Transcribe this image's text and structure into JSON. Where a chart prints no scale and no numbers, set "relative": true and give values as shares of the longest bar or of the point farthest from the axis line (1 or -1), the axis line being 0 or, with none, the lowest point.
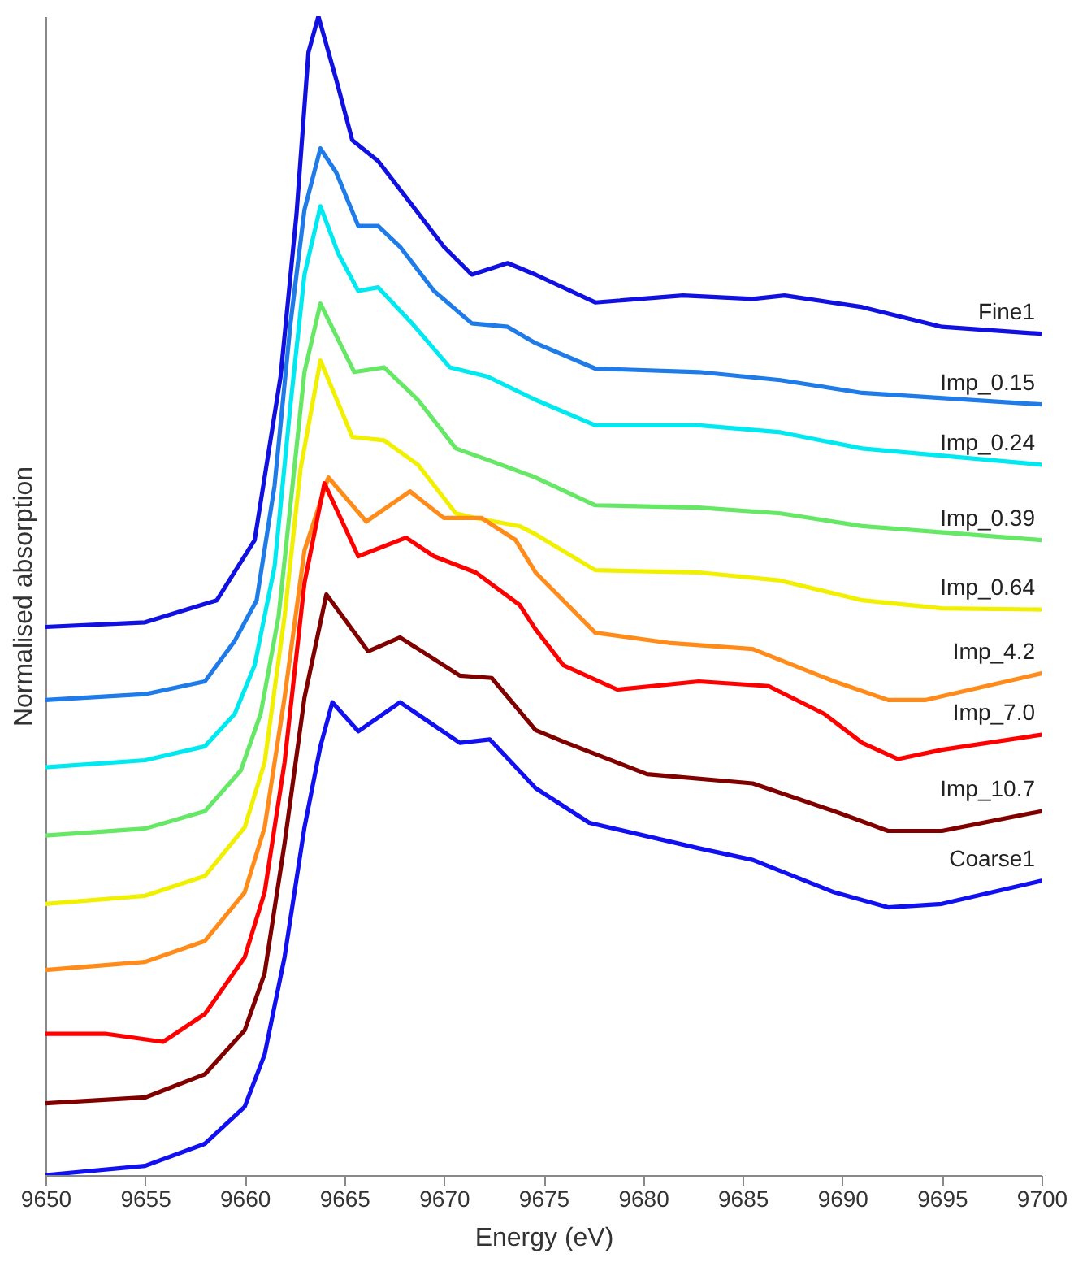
{
  "chart_data": {
    "type": "line",
    "xlabel": "Energy (eV)",
    "ylabel": "Normalised absorption",
    "relative": true,
    "xlim": [
      9650,
      9700
    ],
    "xticks": [
      9650,
      9655,
      9660,
      9665,
      9670,
      9675,
      9680,
      9685,
      9690,
      9695,
      9700
    ],
    "grid": false,
    "legend": false,
    "marker": "none",
    "line_style": "solid",
    "series": [
      {
        "name": "Fine1",
        "color": "#1010e0",
        "x": [
          9650,
          9655,
          9658.6,
          9660.5,
          9661.8,
          9662.6,
          9663.2,
          9663.7,
          9664.6,
          9665.4,
          9666.7,
          9668.4,
          9670,
          9671.4,
          9673.2,
          9674.6,
          9677.6,
          9682,
          9685.5,
          9687.1,
          9691,
          9695,
          9700
        ],
        "values": [
          0.473,
          0.477,
          0.496,
          0.548,
          0.689,
          0.829,
          0.969,
          1.0,
          0.945,
          0.893,
          0.875,
          0.837,
          0.801,
          0.777,
          0.787,
          0.777,
          0.753,
          0.759,
          0.756,
          0.759,
          0.749,
          0.732,
          0.726
        ]
      },
      {
        "name": "Imp_0.15",
        "color": "#1e7be8",
        "x": [
          9650,
          9655,
          9658,
          9659.5,
          9660.6,
          9661.5,
          9662.3,
          9663,
          9663.8,
          9664.6,
          9665.7,
          9666.7,
          9667.8,
          9669.5,
          9671.4,
          9673.2,
          9674.6,
          9677.6,
          9682.8,
          9686.9,
          9691,
          9700
        ],
        "values": [
          0.41,
          0.415,
          0.426,
          0.461,
          0.496,
          0.595,
          0.735,
          0.833,
          0.886,
          0.865,
          0.819,
          0.819,
          0.801,
          0.763,
          0.735,
          0.732,
          0.718,
          0.696,
          0.693,
          0.686,
          0.675,
          0.665
        ]
      },
      {
        "name": "Imp_0.24",
        "color": "#00e8f0",
        "x": [
          9650,
          9655,
          9658,
          9659.5,
          9660.5,
          9661.5,
          9662.3,
          9663,
          9663.8,
          9664.7,
          9665.7,
          9666.7,
          9668.4,
          9670.3,
          9672.2,
          9674.6,
          9677.6,
          9682.8,
          9686.9,
          9691,
          9700
        ],
        "values": [
          0.352,
          0.358,
          0.37,
          0.398,
          0.44,
          0.525,
          0.665,
          0.777,
          0.836,
          0.795,
          0.763,
          0.766,
          0.735,
          0.697,
          0.689,
          0.669,
          0.647,
          0.647,
          0.641,
          0.627,
          0.613
        ]
      },
      {
        "name": "Imp_0.39",
        "color": "#66e866",
        "x": [
          9650,
          9655,
          9658,
          9659.8,
          9660.8,
          9661.7,
          9662.4,
          9663,
          9663.8,
          9665.5,
          9667,
          9668.7,
          9670.6,
          9672.4,
          9674.6,
          9677.6,
          9682.8,
          9686.9,
          9691,
          9700
        ],
        "values": [
          0.293,
          0.299,
          0.314,
          0.349,
          0.398,
          0.482,
          0.595,
          0.693,
          0.752,
          0.693,
          0.697,
          0.669,
          0.627,
          0.616,
          0.602,
          0.578,
          0.576,
          0.571,
          0.56,
          0.548
        ]
      },
      {
        "name": "Imp_0.64",
        "color": "#f0f000",
        "x": [
          9650,
          9655,
          9658,
          9660,
          9661,
          9662,
          9662.8,
          9663.8,
          9665.4,
          9667,
          9668.7,
          9670.6,
          9671.6,
          9673.8,
          9674.6,
          9677.6,
          9682.8,
          9686.9,
          9691,
          9695,
          9700
        ],
        "values": [
          0.234,
          0.241,
          0.258,
          0.3,
          0.356,
          0.482,
          0.609,
          0.703,
          0.637,
          0.634,
          0.613,
          0.571,
          0.567,
          0.56,
          0.553,
          0.522,
          0.52,
          0.513,
          0.496,
          0.489,
          0.488
        ]
      },
      {
        "name": "Imp_4.2",
        "color": "#ff8c1a",
        "x": [
          9650,
          9655,
          9658,
          9660,
          9661,
          9662,
          9663,
          9664.2,
          9666.1,
          9668.3,
          9670,
          9671.9,
          9673.6,
          9674.6,
          9677.6,
          9681.4,
          9685.5,
          9689.6,
          9692.3,
          9694.2,
          9700
        ],
        "values": [
          0.177,
          0.184,
          0.202,
          0.244,
          0.3,
          0.412,
          0.539,
          0.602,
          0.564,
          0.59,
          0.567,
          0.567,
          0.548,
          0.52,
          0.468,
          0.459,
          0.454,
          0.426,
          0.41,
          0.41,
          0.433
        ]
      },
      {
        "name": "Imp_7.0",
        "color": "#ff0000",
        "x": [
          9650,
          9653,
          9655.9,
          9658,
          9660,
          9661,
          9662,
          9663,
          9664,
          9665.7,
          9668.1,
          9669.5,
          9671.6,
          9673.8,
          9674.6,
          9676,
          9678.7,
          9682.8,
          9686.3,
          9689.1,
          9691,
          9692.8,
          9695,
          9700
        ],
        "values": [
          0.122,
          0.122,
          0.115,
          0.139,
          0.188,
          0.244,
          0.356,
          0.511,
          0.597,
          0.534,
          0.55,
          0.534,
          0.52,
          0.492,
          0.471,
          0.44,
          0.419,
          0.426,
          0.422,
          0.398,
          0.373,
          0.359,
          0.367,
          0.38
        ]
      },
      {
        "name": "Imp_10.7",
        "color": "#800000",
        "x": [
          9650,
          9655,
          9658,
          9660,
          9661,
          9662,
          9663,
          9664.1,
          9666.2,
          9667.8,
          9670.8,
          9672.4,
          9674.6,
          9676,
          9680.2,
          9685.5,
          9689.6,
          9692.3,
          9695,
          9700
        ],
        "values": [
          0.062,
          0.067,
          0.087,
          0.125,
          0.174,
          0.286,
          0.412,
          0.501,
          0.452,
          0.464,
          0.431,
          0.429,
          0.384,
          0.374,
          0.346,
          0.338,
          0.314,
          0.297,
          0.297,
          0.314
        ]
      },
      {
        "name": "Coarse1",
        "color": "#1010f0",
        "x": [
          9650,
          9655,
          9658,
          9660,
          9661,
          9662,
          9663,
          9663.8,
          9664.4,
          9665.7,
          9667.8,
          9670.8,
          9672.3,
          9674.6,
          9677.3,
          9682.8,
          9685.5,
          9689.6,
          9692.3,
          9695,
          9700
        ],
        "values": [
          0.0,
          0.008,
          0.027,
          0.059,
          0.104,
          0.188,
          0.3,
          0.37,
          0.408,
          0.383,
          0.408,
          0.373,
          0.376,
          0.334,
          0.304,
          0.282,
          0.272,
          0.244,
          0.231,
          0.234,
          0.254
        ]
      }
    ]
  }
}
